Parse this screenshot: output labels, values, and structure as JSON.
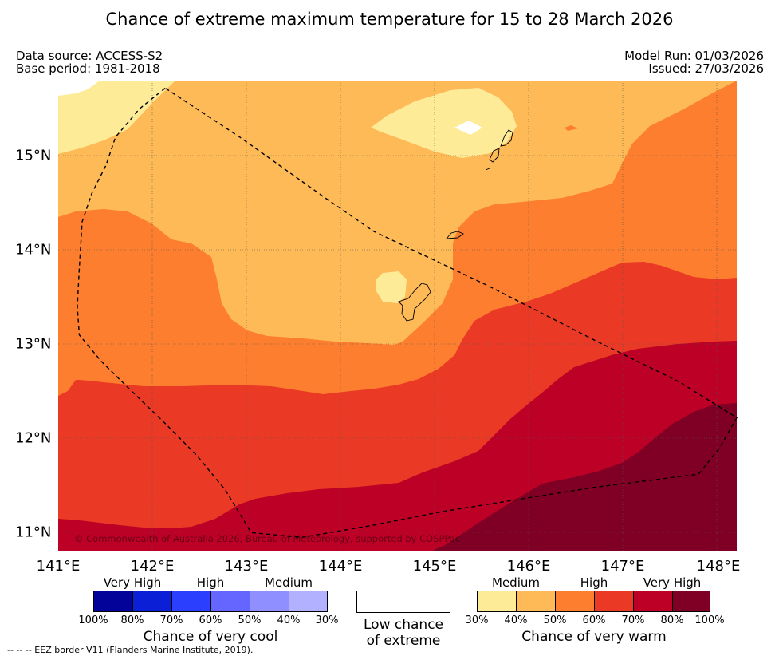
{
  "title": "Chance of extreme maximum temperature for 15 to 28 March 2026",
  "data_source": "Data source: ACCESS-S2",
  "base_period": "Base period: 1981-2018",
  "model_run": "Model Run: 01/03/2026",
  "issued": "Issued: 27/03/2026",
  "copyright": "© Commonwealth of Australia 2026, Bureau of Meteorology, supported by COSPPac",
  "map": {
    "lon_range": [
      141,
      148.1
    ],
    "lat_range": [
      10.8,
      15.8
    ],
    "x_ticks": [
      "141°E",
      "142°E",
      "143°E",
      "144°E",
      "145°E",
      "146°E",
      "147°E",
      "148°E"
    ],
    "y_ticks": [
      "15°N",
      "14°N",
      "13°N",
      "12°N",
      "11°N"
    ],
    "eez_border_lonlat": [
      [
        142.12,
        15.72
      ],
      [
        141.85,
        15.5
      ],
      [
        141.6,
        15.2
      ],
      [
        141.5,
        14.9
      ],
      [
        141.35,
        14.6
      ],
      [
        141.25,
        14.3
      ],
      [
        141.22,
        13.8
      ],
      [
        141.2,
        13.4
      ],
      [
        141.22,
        13.1
      ],
      [
        141.45,
        12.82
      ],
      [
        141.75,
        12.52
      ],
      [
        142.1,
        12.18
      ],
      [
        142.45,
        11.82
      ],
      [
        142.75,
        11.45
      ],
      [
        143.02,
        11.0
      ],
      [
        143.55,
        10.95
      ],
      [
        144.3,
        11.08
      ],
      [
        145.0,
        11.22
      ],
      [
        145.8,
        11.35
      ],
      [
        146.6,
        11.48
      ],
      [
        147.7,
        11.62
      ],
      [
        147.92,
        11.9
      ],
      [
        148.1,
        12.22
      ],
      [
        147.5,
        12.6
      ],
      [
        146.6,
        13.05
      ],
      [
        145.5,
        13.62
      ],
      [
        144.3,
        14.2
      ],
      [
        143.8,
        14.55
      ],
      [
        142.9,
        15.2
      ],
      [
        142.12,
        15.72
      ]
    ],
    "colors": {
      "sea_30_40": "#fdeb98",
      "sea_40_50": "#fdba57",
      "sea_50_60": "#fc7e2e",
      "sea_60_70": "#ea3925",
      "sea_70_80": "#bd0026",
      "sea_80_100": "#800025"
    },
    "islands": [
      "Saipan",
      "Tinian",
      "Rota",
      "Guam"
    ]
  },
  "legend": {
    "cool_categories": [
      "Very High",
      "High",
      "Medium"
    ],
    "cool_percents": [
      "100%",
      "80%",
      "70%",
      "60%",
      "50%",
      "40%",
      "30%"
    ],
    "cool_title": "Chance of very cool",
    "cool_colors": [
      "#03039a",
      "#0a1fd6",
      "#2b40ff",
      "#6565ff",
      "#8f8fff",
      "#b1b1ff"
    ],
    "low_chance_line1": "Low chance",
    "low_chance_line2": "of extreme",
    "warm_categories": [
      "Medium",
      "High",
      "Very High"
    ],
    "warm_percents": [
      "30%",
      "40%",
      "50%",
      "60%",
      "70%",
      "80%",
      "100%"
    ],
    "warm_title": "Chance of very warm",
    "warm_colors": [
      "#fdeb98",
      "#fdba57",
      "#fc7e2e",
      "#ea3925",
      "#bd0026",
      "#800025"
    ]
  },
  "footnote": "--  --  -- EEZ border V11 (Flanders Marine Institute, 2019)."
}
